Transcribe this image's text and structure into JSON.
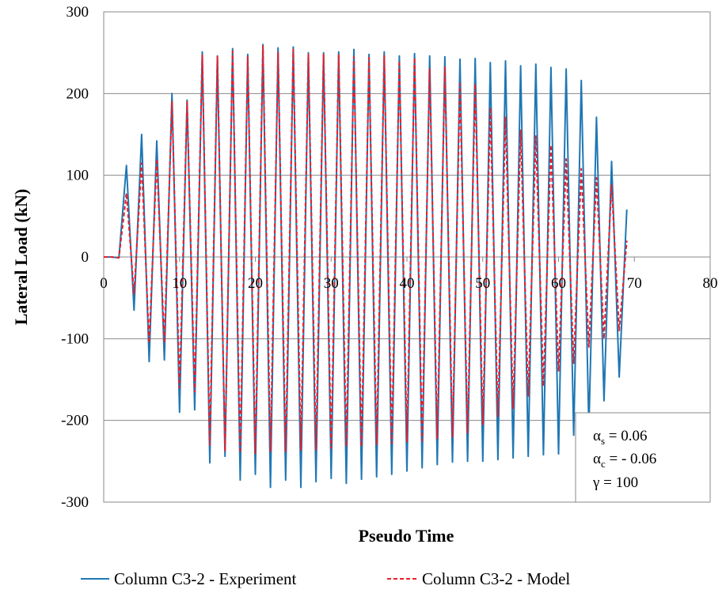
{
  "chart_data": {
    "type": "line",
    "title": "",
    "xlabel": "Pseudo Time",
    "ylabel": "Lateral Load (kN)",
    "xlim": [
      0,
      80
    ],
    "ylim": [
      -300,
      300
    ],
    "xticks": [
      "0",
      "10",
      "20",
      "30",
      "40",
      "50",
      "60",
      "70",
      "80"
    ],
    "yticks": [
      "300",
      "200",
      "100",
      "0",
      "-100",
      "-200",
      "-300"
    ],
    "grid": "horizontal",
    "legend_position": "bottom",
    "series": [
      {
        "name": "Column C3-2 - Experiment",
        "color": "#1f77b4",
        "style": "solid",
        "x": [
          0,
          1,
          2,
          3,
          4,
          5,
          6,
          7,
          8,
          9,
          10,
          11,
          12,
          13,
          14,
          15,
          16,
          17,
          18,
          19,
          20,
          21,
          22,
          23,
          24,
          25,
          26,
          27,
          28,
          29,
          30,
          31,
          32,
          33,
          34,
          35,
          36,
          37,
          38,
          39,
          40,
          41,
          42,
          43,
          44,
          45,
          46,
          47,
          48,
          49,
          50,
          51,
          52,
          53,
          54,
          55,
          56,
          57,
          58,
          59,
          60,
          61,
          62,
          63,
          64,
          65,
          66,
          67,
          68,
          69
        ],
        "y": [
          0,
          0,
          -1,
          112,
          -65,
          150,
          -128,
          142,
          -126,
          200,
          -190,
          192,
          -187,
          251,
          -252,
          246,
          -244,
          255,
          -273,
          248,
          -266,
          260,
          -282,
          256,
          -273,
          257,
          -282,
          250,
          -275,
          250,
          -271,
          251,
          -277,
          254,
          -272,
          248,
          -269,
          251,
          -266,
          246,
          -262,
          249,
          -258,
          246,
          -254,
          245,
          -251,
          242,
          -250,
          243,
          -250,
          238,
          -248,
          240,
          -246,
          234,
          -244,
          236,
          -242,
          232,
          -241,
          230,
          -218,
          216,
          -210,
          171,
          -176,
          117,
          -147,
          58
        ]
      },
      {
        "name": "Column C3-2 - Model",
        "color": "#e8202a",
        "style": "dashed",
        "x": [
          0,
          1,
          2,
          3,
          4,
          5,
          6,
          7,
          8,
          9,
          10,
          11,
          12,
          13,
          14,
          15,
          16,
          17,
          18,
          19,
          20,
          21,
          22,
          23,
          24,
          25,
          26,
          27,
          28,
          29,
          30,
          31,
          32,
          33,
          34,
          35,
          36,
          37,
          38,
          39,
          40,
          41,
          42,
          43,
          44,
          45,
          46,
          47,
          48,
          49,
          50,
          51,
          52,
          53,
          54,
          55,
          56,
          57,
          58,
          59,
          60,
          61,
          62,
          63,
          64,
          65,
          66,
          67,
          68,
          69
        ],
        "y": [
          0,
          0,
          -1,
          78,
          -45,
          115,
          -105,
          120,
          -105,
          190,
          -160,
          190,
          -165,
          247,
          -230,
          245,
          -238,
          252,
          -240,
          245,
          -240,
          258,
          -238,
          250,
          -238,
          254,
          -236,
          248,
          -236,
          248,
          -234,
          248,
          -232,
          245,
          -232,
          244,
          -230,
          246,
          -228,
          240,
          -226,
          244,
          -225,
          230,
          -222,
          232,
          -220,
          212,
          -215,
          212,
          -205,
          183,
          -195,
          172,
          -185,
          155,
          -170,
          148,
          -158,
          137,
          -140,
          120,
          -130,
          108,
          -110,
          97,
          -100,
          88,
          -90,
          20
        ]
      }
    ],
    "annotation": {
      "line1": "αs = 0.06",
      "line2": "αc = - 0.06",
      "line3": "γ = 100"
    }
  },
  "params": {
    "alpha_s_sym": "α",
    "alpha_s_sub": "s",
    "alpha_s_val": " = 0.06",
    "alpha_c_sym": "α",
    "alpha_c_sub": "c",
    "alpha_c_val": " = - 0.06",
    "gamma": "γ = 100"
  }
}
